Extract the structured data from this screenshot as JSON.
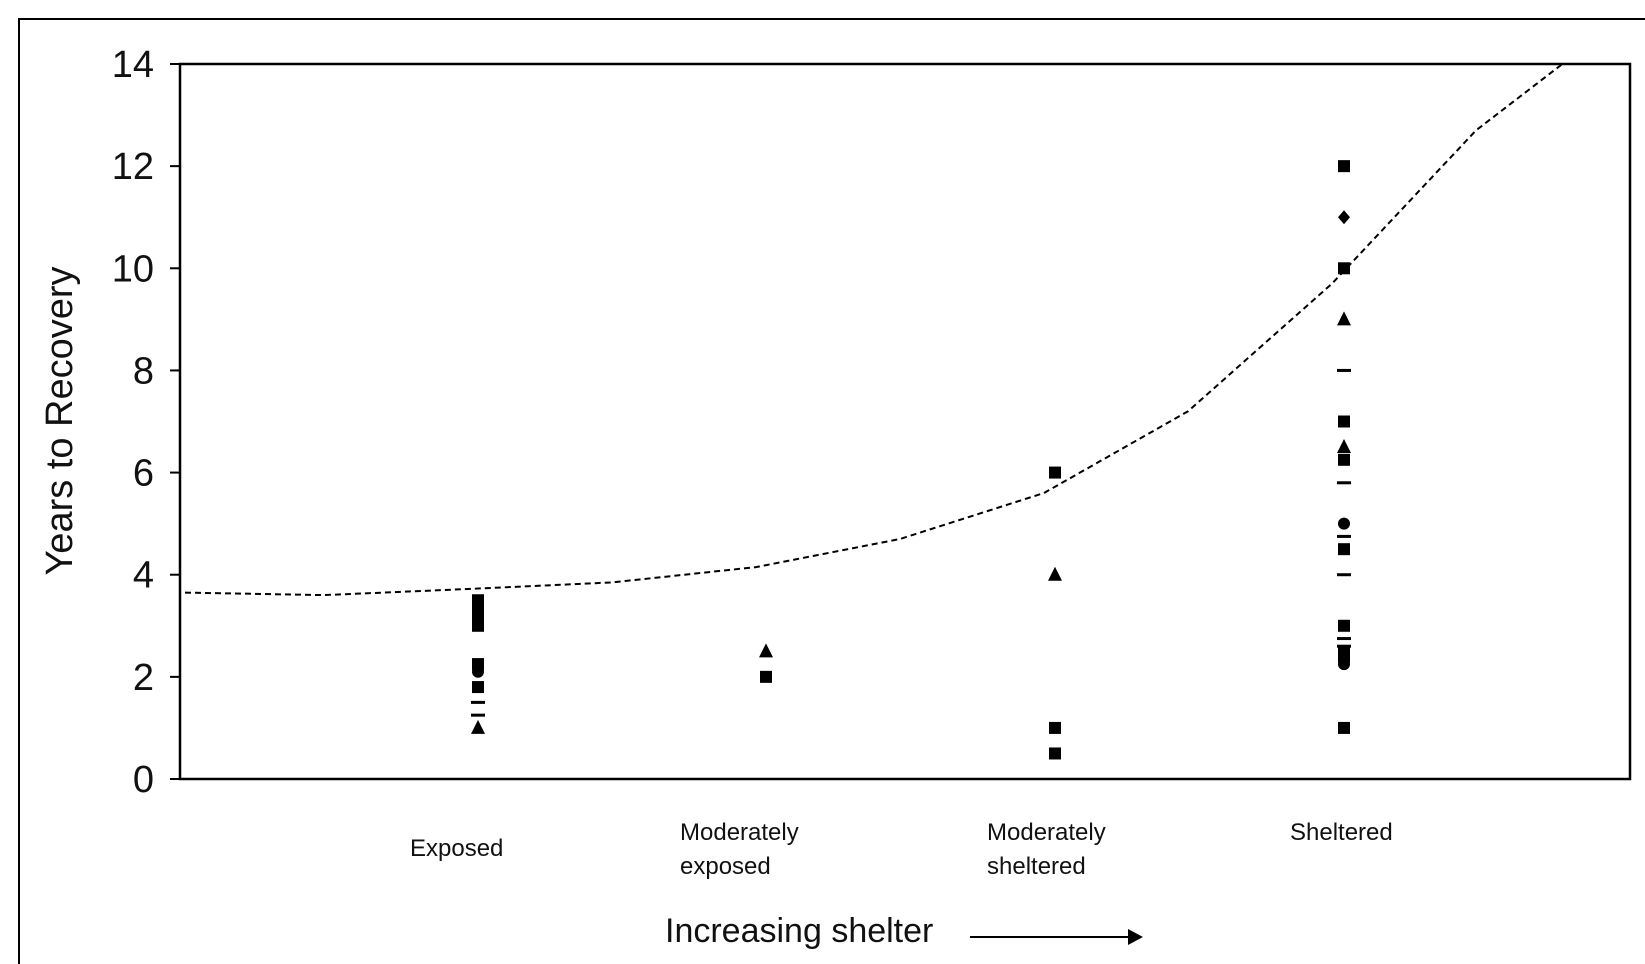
{
  "chart_data": {
    "type": "scatter",
    "ylabel": "Years to Recovery",
    "xlabel": "Increasing shelter",
    "ylim": [
      0,
      14
    ],
    "yticks": [
      0,
      2,
      4,
      6,
      8,
      10,
      12,
      14
    ],
    "categories": [
      "Exposed",
      "Moderately exposed",
      "Moderately sheltered",
      "Sheltered"
    ],
    "category_lines": [
      [
        "Exposed"
      ],
      [
        "Moderately",
        "exposed"
      ],
      [
        "Moderately",
        "sheltered"
      ],
      [
        "Sheltered"
      ]
    ],
    "grid": false,
    "points": [
      {
        "category": "Exposed",
        "y": 3.5,
        "marker": "square"
      },
      {
        "category": "Exposed",
        "y": 3.3,
        "marker": "square"
      },
      {
        "category": "Exposed",
        "y": 3.1,
        "marker": "square"
      },
      {
        "category": "Exposed",
        "y": 3.0,
        "marker": "square"
      },
      {
        "category": "Exposed",
        "y": 2.25,
        "marker": "square"
      },
      {
        "category": "Exposed",
        "y": 2.1,
        "marker": "circle"
      },
      {
        "category": "Exposed",
        "y": 1.8,
        "marker": "square"
      },
      {
        "category": "Exposed",
        "y": 1.5,
        "marker": "dash"
      },
      {
        "category": "Exposed",
        "y": 1.25,
        "marker": "dash"
      },
      {
        "category": "Exposed",
        "y": 1.0,
        "marker": "triangle"
      },
      {
        "category": "Moderately exposed",
        "y": 2.5,
        "marker": "triangle"
      },
      {
        "category": "Moderately exposed",
        "y": 2.0,
        "marker": "square"
      },
      {
        "category": "Moderately sheltered",
        "y": 6.0,
        "marker": "square"
      },
      {
        "category": "Moderately sheltered",
        "y": 4.0,
        "marker": "triangle"
      },
      {
        "category": "Moderately sheltered",
        "y": 1.0,
        "marker": "square"
      },
      {
        "category": "Moderately sheltered",
        "y": 0.5,
        "marker": "square"
      },
      {
        "category": "Sheltered",
        "y": 12.0,
        "marker": "square"
      },
      {
        "category": "Sheltered",
        "y": 11.0,
        "marker": "diamond"
      },
      {
        "category": "Sheltered",
        "y": 10.0,
        "marker": "square"
      },
      {
        "category": "Sheltered",
        "y": 9.0,
        "marker": "triangle"
      },
      {
        "category": "Sheltered",
        "y": 8.0,
        "marker": "dash"
      },
      {
        "category": "Sheltered",
        "y": 7.0,
        "marker": "square"
      },
      {
        "category": "Sheltered",
        "y": 6.5,
        "marker": "triangle"
      },
      {
        "category": "Sheltered",
        "y": 6.25,
        "marker": "square"
      },
      {
        "category": "Sheltered",
        "y": 5.8,
        "marker": "dash"
      },
      {
        "category": "Sheltered",
        "y": 5.0,
        "marker": "circle"
      },
      {
        "category": "Sheltered",
        "y": 4.75,
        "marker": "dash"
      },
      {
        "category": "Sheltered",
        "y": 4.5,
        "marker": "square"
      },
      {
        "category": "Sheltered",
        "y": 4.0,
        "marker": "dash"
      },
      {
        "category": "Sheltered",
        "y": 3.0,
        "marker": "square"
      },
      {
        "category": "Sheltered",
        "y": 2.75,
        "marker": "dash"
      },
      {
        "category": "Sheltered",
        "y": 2.6,
        "marker": "dash"
      },
      {
        "category": "Sheltered",
        "y": 2.5,
        "marker": "square"
      },
      {
        "category": "Sheltered",
        "y": 2.4,
        "marker": "square"
      },
      {
        "category": "Sheltered",
        "y": 2.25,
        "marker": "circle"
      },
      {
        "category": "Sheltered",
        "y": 1.0,
        "marker": "square"
      }
    ],
    "trend_line": {
      "style": "dashed",
      "x": [
        0,
        0.5,
        1,
        1.5,
        2,
        2.5,
        3,
        3.5,
        4,
        4.5,
        4.8
      ],
      "y": [
        3.65,
        3.6,
        3.72,
        3.85,
        4.15,
        4.7,
        5.6,
        7.2,
        9.7,
        12.7,
        14.0
      ]
    }
  }
}
